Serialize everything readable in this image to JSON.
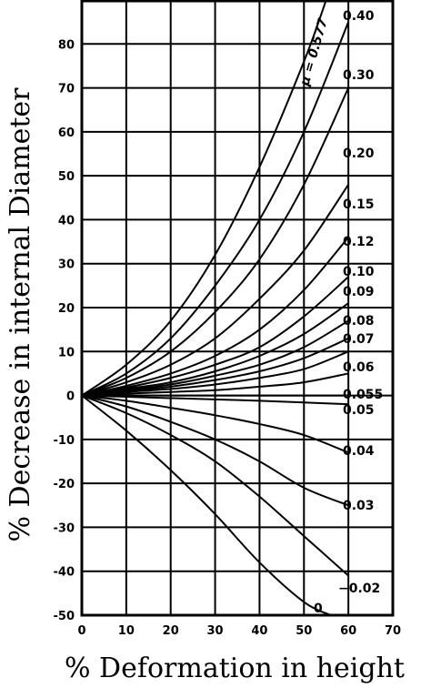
{
  "chart_data": {
    "type": "line",
    "xlabel": "% Deformation in height",
    "ylabel": "% Decrease in internal Diameter",
    "xlim": [
      0,
      70
    ],
    "ylim": [
      -50,
      90
    ],
    "grid": true,
    "x_ticks": [
      "0",
      "10",
      "20",
      "30",
      "40",
      "50",
      "60",
      "70"
    ],
    "y_ticks": [
      "80",
      "70",
      "60",
      "50",
      "40",
      "30",
      "20",
      "10",
      "0",
      "-10",
      "-20",
      "-30",
      "-40",
      "-50"
    ],
    "series": [
      {
        "name": "μ = 0.577",
        "x": [
          0,
          10,
          20,
          30,
          40,
          50,
          55
        ],
        "y": [
          0,
          7,
          17,
          32,
          52,
          76,
          90
        ]
      },
      {
        "name": "0.40",
        "x": [
          0,
          10,
          20,
          30,
          40,
          50,
          60
        ],
        "y": [
          0,
          5,
          13,
          25,
          40,
          60,
          85
        ]
      },
      {
        "name": "0.30",
        "x": [
          0,
          10,
          20,
          30,
          40,
          50,
          60
        ],
        "y": [
          0,
          4,
          10,
          19,
          31,
          48,
          70
        ]
      },
      {
        "name": "0.20",
        "x": [
          0,
          10,
          20,
          30,
          40,
          50,
          60
        ],
        "y": [
          0,
          3,
          7,
          13,
          22,
          33,
          48
        ]
      },
      {
        "name": "0.15",
        "x": [
          0,
          10,
          20,
          30,
          40,
          50,
          60
        ],
        "y": [
          0,
          2.2,
          5,
          9,
          15,
          24,
          36
        ]
      },
      {
        "name": "0.12",
        "x": [
          0,
          10,
          20,
          30,
          40,
          50,
          60
        ],
        "y": [
          0,
          1.8,
          4,
          7,
          11,
          18,
          27
        ]
      },
      {
        "name": "0.10",
        "x": [
          0,
          10,
          20,
          30,
          40,
          50,
          60
        ],
        "y": [
          0,
          1.5,
          3,
          5.5,
          9,
          14,
          21
        ]
      },
      {
        "name": "0.09",
        "x": [
          0,
          10,
          20,
          30,
          40,
          50,
          60
        ],
        "y": [
          0,
          1.2,
          2.5,
          4.5,
          7,
          11,
          17
        ]
      },
      {
        "name": "0.08",
        "x": [
          0,
          10,
          20,
          30,
          40,
          50,
          60
        ],
        "y": [
          0,
          1,
          2,
          3.5,
          5.5,
          8.5,
          13
        ]
      },
      {
        "name": "0.07",
        "x": [
          0,
          10,
          20,
          30,
          40,
          50,
          60
        ],
        "y": [
          0,
          0.8,
          1.5,
          2.5,
          4,
          6,
          10
        ]
      },
      {
        "name": "0.06",
        "x": [
          0,
          10,
          20,
          30,
          40,
          50,
          60
        ],
        "y": [
          0,
          0.4,
          0.8,
          1.2,
          2,
          3,
          5
        ]
      },
      {
        "name": "0.055",
        "x": [
          0,
          10,
          20,
          30,
          40,
          50,
          60
        ],
        "y": [
          0,
          0,
          0,
          0,
          0,
          0,
          0
        ]
      },
      {
        "name": "0.05",
        "x": [
          0,
          10,
          20,
          30,
          40,
          50,
          60
        ],
        "y": [
          0,
          -0.3,
          -0.6,
          -0.9,
          -1.2,
          -1.6,
          -2
        ]
      },
      {
        "name": "0.04",
        "x": [
          0,
          10,
          20,
          30,
          40,
          50,
          60
        ],
        "y": [
          0,
          -1.2,
          -2.8,
          -4.5,
          -6.5,
          -9,
          -13
        ]
      },
      {
        "name": "0.03",
        "x": [
          0,
          10,
          20,
          30,
          40,
          50,
          60
        ],
        "y": [
          0,
          -2.5,
          -6,
          -10,
          -15,
          -21,
          -25
        ]
      },
      {
        "name": "−0.02",
        "x": [
          0,
          10,
          20,
          30,
          40,
          50,
          60
        ],
        "y": [
          0,
          -4,
          -9,
          -15,
          -23,
          -32,
          -41
        ]
      },
      {
        "name": "0",
        "x": [
          0,
          10,
          20,
          30,
          40,
          50,
          56
        ],
        "y": [
          0,
          -8,
          -17,
          -27,
          -38,
          -47,
          -50
        ]
      }
    ]
  }
}
